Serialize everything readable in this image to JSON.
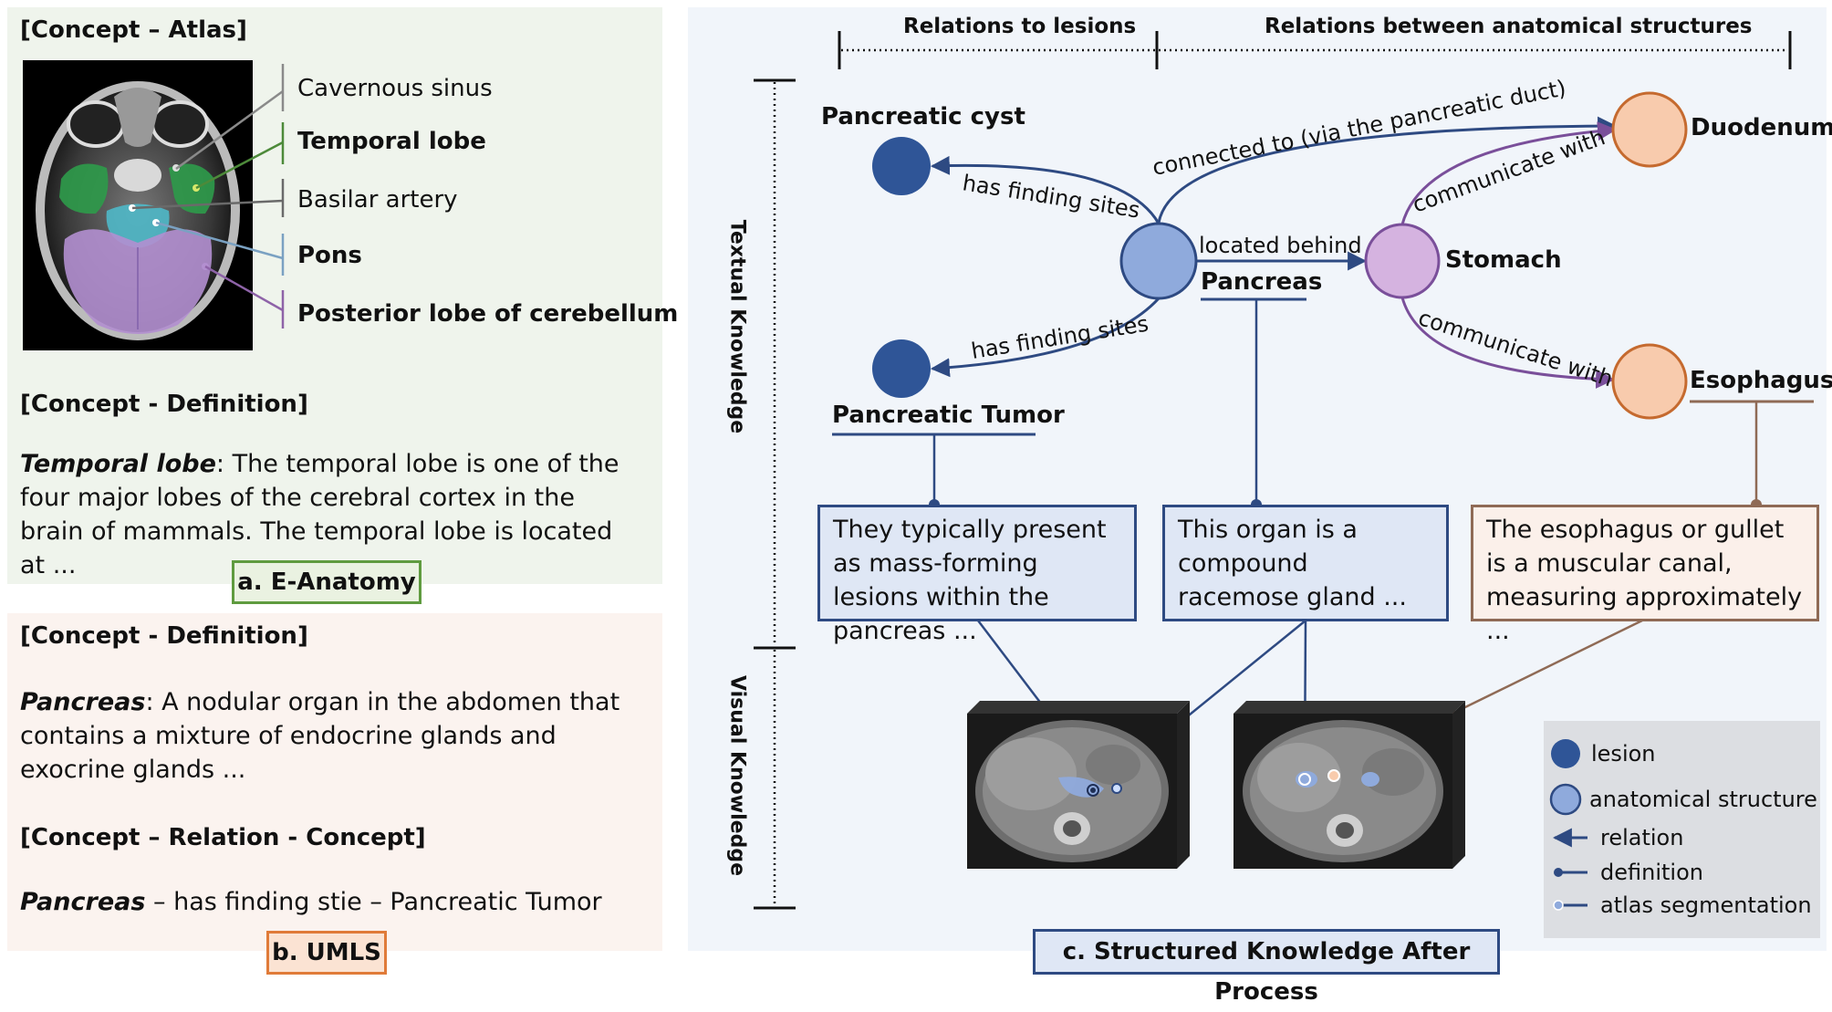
{
  "colors": {
    "panel_a_bg": "#eff4ec",
    "panel_b_bg": "#fbf3ef",
    "panel_c_bg": "#f1f5fa",
    "lesion": "#2f5597",
    "anatomy": "#8faadc",
    "stomach": "#d5b3e0",
    "orange_node": "#f8cbad",
    "relation_line": "#2e4a82",
    "purple_line": "#7a4f9a",
    "brown_line": "#8f6a55"
  },
  "panel_a": {
    "atlas_heading": "[Concept – Atlas]",
    "atlas_labels": [
      "Cavernous sinus",
      "Temporal lobe",
      "Basilar artery",
      "Pons",
      "Posterior lobe of cerebellum"
    ],
    "definition_heading": "[Concept - Definition]",
    "def_term": "Temporal lobe",
    "def_text": ": The temporal lobe is one of the four major lobes of the cerebral cortex in the brain of mammals. The temporal lobe is located at ...",
    "tag": "a. E-Anatomy"
  },
  "panel_b": {
    "definition_heading": "[Concept - Definition]",
    "def_term": "Pancreas",
    "def_text": ": A nodular organ in the abdomen that contains a mixture of endocrine glands and exocrine glands ...",
    "relation_heading": "[Concept – Relation - Concept]",
    "rel_term": "Pancreas",
    "rel_text": " – has finding stie – Pancreatic Tumor",
    "tag": "b. UMLS"
  },
  "panel_c": {
    "header_left": "Relations to lesions",
    "header_right": "Relations between anatomical structures",
    "side_textual": "Textual Knowledge",
    "side_visual": "Visual Knowledge",
    "nodes": {
      "pancreatic_cyst": "Pancreatic cyst",
      "pancreatic_tumor": "Pancreatic Tumor",
      "pancreas": "Pancreas",
      "stomach": "Stomach",
      "duodenum": "Duodenum",
      "esophagus": "Esophagus"
    },
    "edges": {
      "cyst": "has finding sites",
      "tumor": "has finding sites",
      "duodenum_pancreas": "connected to (via the pancreatic duct)",
      "pancreas_stomach": "located behind",
      "stomach_duodenum": "communicate with",
      "stomach_esophagus": "communicate with"
    },
    "def_boxes": {
      "tumor": "They typically present as mass-forming lesions within the pancreas ...",
      "pancreas": "This organ is a compound racemose gland ...",
      "esophagus": "The esophagus or gullet is a muscular canal, measuring approximately ..."
    },
    "legend": {
      "lesion": "lesion",
      "anatomical_structure": "anatomical structure",
      "relation": "relation",
      "definition": "definition",
      "atlas_segmentation": "atlas segmentation"
    },
    "tag": "c. Structured Knowledge After Process"
  }
}
